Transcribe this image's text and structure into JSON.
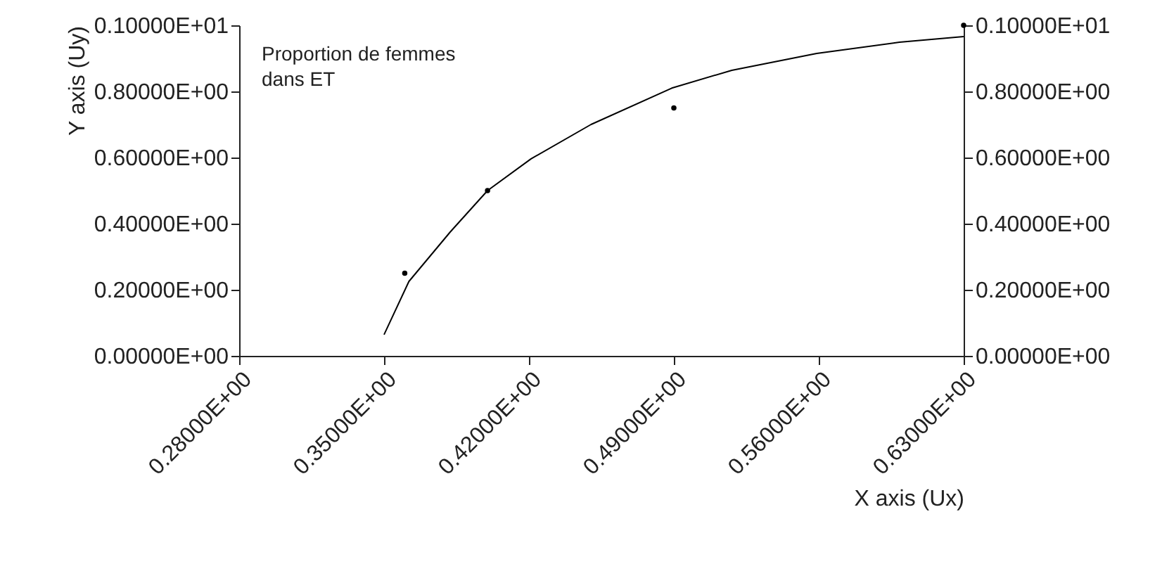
{
  "chart_data": {
    "type": "scatter",
    "xlabel": "X axis (Ux)",
    "ylabel": "Y axis (Uy)",
    "annotations": [
      "Proportion de femmes dans ET"
    ],
    "xlim": [
      0.28,
      0.63
    ],
    "xticks": [
      {
        "value": 0.28,
        "label": "0.28000E+00"
      },
      {
        "value": 0.35,
        "label": "0.35000E+00"
      },
      {
        "value": 0.42,
        "label": "0.42000E+00"
      },
      {
        "value": 0.49,
        "label": "0.49000E+00"
      },
      {
        "value": 0.56,
        "label": "0.56000E+00"
      },
      {
        "value": 0.63,
        "label": "0.63000E+00"
      }
    ],
    "ylim": [
      0,
      1
    ],
    "yticks": [
      {
        "value": 0,
        "label": "0.00000E+00"
      },
      {
        "value": 0.2,
        "label": "0.20000E+00"
      },
      {
        "value": 0.4,
        "label": "0.40000E+00"
      },
      {
        "value": 0.6,
        "label": "0.60000E+00"
      },
      {
        "value": 0.8,
        "label": "0.80000E+00"
      },
      {
        "value": 1,
        "label": "0.10000E+01"
      }
    ],
    "y2lim": [
      0,
      1
    ],
    "y2ticks": [
      {
        "value": 0,
        "label": "0.00000E+00"
      },
      {
        "value": 0.2,
        "label": "0.20000E+00"
      },
      {
        "value": 0.4,
        "label": "0.40000E+00"
      },
      {
        "value": 0.6,
        "label": "0.60000E+00"
      },
      {
        "value": 0.8,
        "label": "0.80000E+00"
      },
      {
        "value": 1,
        "label": "0.10000E+01"
      }
    ],
    "grid": false,
    "marker": "circle",
    "series": [
      {
        "type": "scatter",
        "color": "#000000",
        "x": [
          0.36,
          0.4,
          0.49,
          0.63
        ],
        "values": [
          0.25,
          0.5,
          0.75,
          1.0
        ]
      },
      {
        "type": "line",
        "color": "#000000",
        "marker": "none",
        "x": [
          0.35,
          0.362,
          0.382,
          0.4,
          0.421,
          0.45,
          0.489,
          0.518,
          0.559,
          0.599,
          0.63
        ],
        "values": [
          0.064,
          0.225,
          0.375,
          0.5,
          0.596,
          0.7,
          0.81,
          0.864,
          0.915,
          0.949,
          0.966
        ]
      }
    ]
  }
}
